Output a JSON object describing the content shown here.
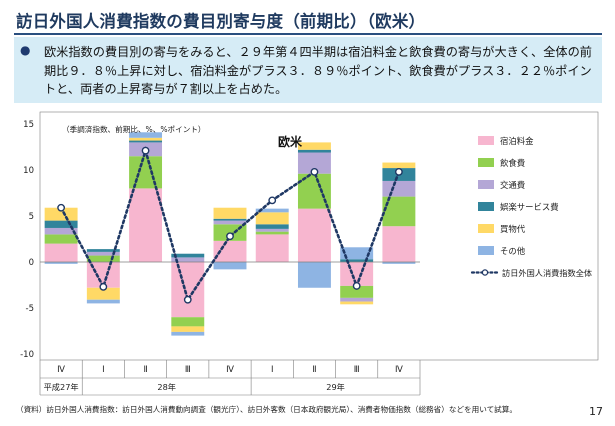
{
  "page": {
    "title": "訪日外国人消費指数の費目別寄与度（前期比）（欧米）",
    "bullet": "●",
    "summary": "欧米指数の費目別の寄与をみると、２９年第４四半期は宿泊料金と飲食費の寄与が大きく、全体の前期比９．８％上昇に対し、宿泊料金がプラス３．８９％ポイント、飲食費がプラス３．２２％ポイントと、両者の上昇寄与が７割以上を占めた。",
    "footnote": "（資料）訪日外国人消費指数：訪日外国人消費動向調査（観光庁）、訪日外客数（日本政府観光局）、消費者物価指数（総務省）などを用いて試算。",
    "page_number": "17"
  },
  "chart_data": {
    "type": "bar",
    "stacked": true,
    "title": "欧米",
    "annotation": "（季調済指数、前期比、%、%ポイント）",
    "categories": [
      "Ⅳ",
      "Ⅰ",
      "Ⅱ",
      "Ⅲ",
      "Ⅳ",
      "Ⅰ",
      "Ⅱ",
      "Ⅲ",
      "Ⅳ"
    ],
    "year_labels": [
      {
        "label": "平成27年",
        "from": 0,
        "to": 0
      },
      {
        "label": "28年",
        "from": 1,
        "to": 4
      },
      {
        "label": "29年",
        "from": 5,
        "to": 8
      }
    ],
    "ylim": [
      -10,
      15
    ],
    "yticks": [
      -10,
      -5,
      0,
      5,
      10,
      15
    ],
    "grid": false,
    "legend_position": "right",
    "series": [
      {
        "name": "宿泊料金",
        "color": "#f7b6cf",
        "values": [
          2.0,
          -2.8,
          8.0,
          -6.0,
          2.3,
          3.0,
          5.8,
          -2.6,
          3.89
        ]
      },
      {
        "name": "飲食費",
        "color": "#92d050",
        "values": [
          1.0,
          0.7,
          3.5,
          -1.0,
          1.8,
          0.3,
          3.8,
          -1.3,
          3.22
        ]
      },
      {
        "name": "交通費",
        "color": "#b4a7d6",
        "values": [
          0.7,
          0.4,
          1.5,
          0.5,
          0.4,
          0.3,
          2.3,
          -0.4,
          1.7
        ]
      },
      {
        "name": "娯楽サービス費",
        "color": "#31849b",
        "values": [
          0.8,
          0.3,
          0.2,
          0.4,
          0.2,
          0.5,
          0.3,
          0.3,
          1.4
        ]
      },
      {
        "name": "買物代",
        "color": "#ffd966",
        "values": [
          1.4,
          -1.3,
          0.3,
          -0.6,
          1.2,
          1.3,
          0.8,
          -0.3,
          0.6
        ]
      },
      {
        "name": "その他",
        "color": "#8eb4e3",
        "values": [
          -0.2,
          -0.4,
          0.6,
          -0.4,
          -0.8,
          0.4,
          -2.8,
          1.3,
          -0.2
        ]
      }
    ],
    "total_series": {
      "name": "訪日外国人消費指数全体",
      "color": "#1f3864",
      "values": [
        5.9,
        -2.7,
        12.1,
        -4.1,
        2.8,
        6.7,
        9.8,
        -2.6,
        9.8
      ]
    }
  }
}
